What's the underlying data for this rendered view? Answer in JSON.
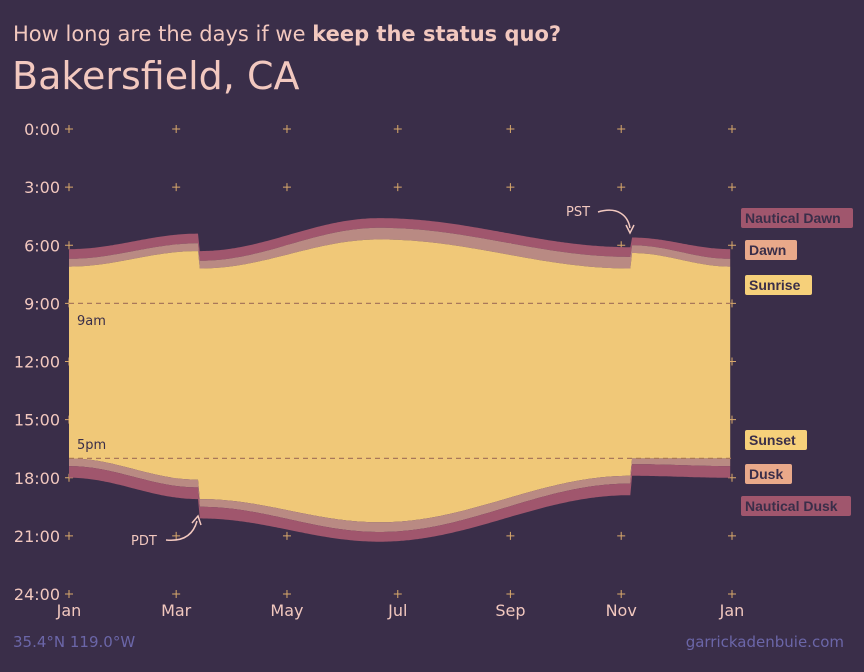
{
  "header": {
    "subtitle_pre": "How long are the days if we ",
    "subtitle_bold": "keep the status quo?",
    "title": "Bakersfield, CA"
  },
  "footer": {
    "coords": "35.4°N 119.0°W",
    "credit": "garrickadenbuie.com"
  },
  "annotations": {
    "pst": "PST",
    "pdt": "PDT",
    "nine_am": "9am",
    "five_pm": "5pm"
  },
  "colors": {
    "background": "#3a2e49",
    "nautical": "#a0566d",
    "civil": "#b98a83",
    "day": "#f0c878",
    "grid": "#d9a96b",
    "text": "#f2c8bf",
    "muted": "#6b66a8"
  },
  "chart_data": {
    "type": "area",
    "title": "Bakersfield, CA",
    "subtitle": "How long are the days if we keep the status quo?",
    "x_ticks": [
      "Jan",
      "Mar",
      "May",
      "Jul",
      "Sep",
      "Nov",
      "Jan"
    ],
    "y_ticks": [
      "0:00",
      "3:00",
      "6:00",
      "9:00",
      "12:00",
      "15:00",
      "18:00",
      "21:00",
      "24:00"
    ],
    "ylim": [
      0,
      24
    ],
    "y_reversed": true,
    "reference_lines": [
      {
        "label": "9am",
        "hour": 9
      },
      {
        "label": "5pm",
        "hour": 17
      }
    ],
    "legend": [
      {
        "name": "Nautical Dawn",
        "color": "#a0566d"
      },
      {
        "name": "Dawn",
        "color": "#e9a98a"
      },
      {
        "name": "Sunrise",
        "color": "#f6d07a"
      },
      {
        "name": "Sunset",
        "color": "#f6d07a"
      },
      {
        "name": "Dusk",
        "color": "#e9a98a"
      },
      {
        "name": "Nautical Dusk",
        "color": "#a0566d"
      }
    ],
    "series": [
      {
        "name": "Nautical Dawn",
        "dates": [
          "Jan 1",
          "Mar 13",
          "Mar 14",
          "Jun 21",
          "Nov 6",
          "Nov 7",
          "Dec 31"
        ],
        "hours": [
          6.2,
          5.4,
          6.3,
          4.6,
          6.1,
          5.6,
          6.2
        ]
      },
      {
        "name": "Dawn",
        "dates": [
          "Jan 1",
          "Mar 13",
          "Mar 14",
          "Jun 21",
          "Nov 6",
          "Nov 7",
          "Dec 31"
        ],
        "hours": [
          6.7,
          5.9,
          6.8,
          5.1,
          6.6,
          6.0,
          6.7
        ]
      },
      {
        "name": "Sunrise",
        "dates": [
          "Jan 1",
          "Mar 13",
          "Mar 14",
          "Jun 21",
          "Nov 6",
          "Nov 7",
          "Dec 31"
        ],
        "hours": [
          7.1,
          6.3,
          7.2,
          5.7,
          7.2,
          6.4,
          7.1
        ]
      },
      {
        "name": "Sunset",
        "dates": [
          "Jan 1",
          "Mar 13",
          "Mar 14",
          "Jun 21",
          "Nov 6",
          "Nov 7",
          "Dec 31"
        ],
        "hours": [
          17.0,
          18.1,
          19.1,
          20.3,
          17.9,
          17.0,
          17.0
        ]
      },
      {
        "name": "Dusk",
        "dates": [
          "Jan 1",
          "Mar 13",
          "Mar 14",
          "Jun 21",
          "Nov 6",
          "Nov 7",
          "Dec 31"
        ],
        "hours": [
          17.4,
          18.5,
          19.5,
          20.8,
          18.3,
          17.3,
          17.4
        ]
      },
      {
        "name": "Nautical Dusk",
        "dates": [
          "Jan 1",
          "Mar 13",
          "Mar 14",
          "Jun 21",
          "Nov 6",
          "Nov 7",
          "Dec 31"
        ],
        "hours": [
          18.0,
          19.1,
          20.1,
          21.3,
          18.9,
          17.9,
          18.0
        ]
      }
    ]
  }
}
